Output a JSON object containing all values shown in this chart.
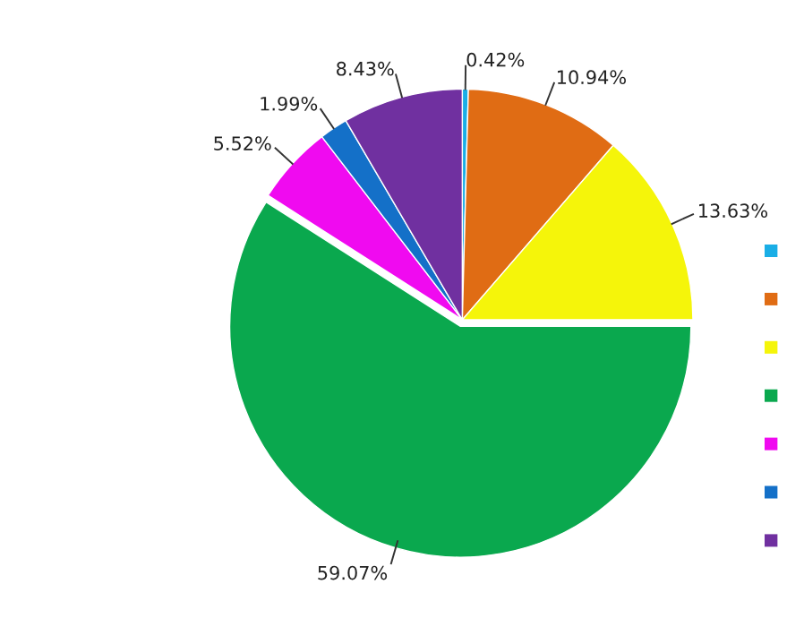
{
  "chart_data": {
    "type": "pie",
    "categories": [
      null,
      null,
      null,
      null,
      null,
      null,
      null
    ],
    "values": [
      0.42,
      10.94,
      13.63,
      59.07,
      5.52,
      1.99,
      8.43
    ],
    "value_labels": [
      "0.42%",
      "10.94%",
      "13.63%",
      "59.07%",
      "5.52%",
      "1.99%",
      "8.43%"
    ],
    "colors": [
      "#1aaee6",
      "#e06c14",
      "#f5f50a",
      "#0aa84e",
      "#f00af0",
      "#1470c8",
      "#7030a0"
    ]
  }
}
